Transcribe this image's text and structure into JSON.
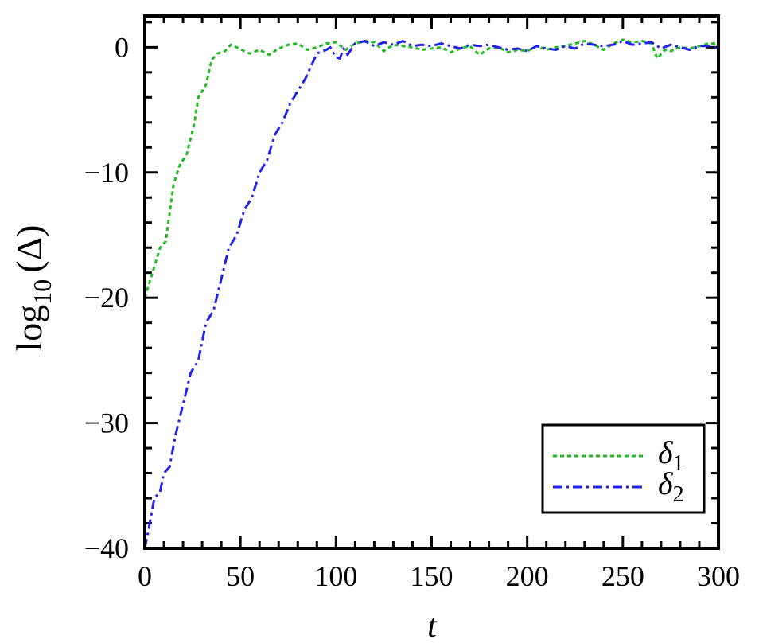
{
  "chart_data": {
    "type": "line",
    "xlabel": "t",
    "ylabel_main": "log",
    "ylabel_sub": "10",
    "ylabel_arg": "(Δ)",
    "xlim": [
      0,
      300
    ],
    "ylim": [
      -40,
      2.5
    ],
    "x_ticks": [
      0,
      50,
      100,
      150,
      200,
      250,
      300
    ],
    "y_ticks": [
      -40,
      -30,
      -20,
      -10,
      0
    ],
    "x_tick_labels": [
      "0",
      "50",
      "100",
      "150",
      "200",
      "250",
      "300"
    ],
    "y_tick_labels": [
      "−40",
      "−30",
      "−20",
      "−10",
      "0"
    ],
    "x_minor_step": 10,
    "y_minor_step": 2,
    "legend_position": "bottom-right",
    "series": [
      {
        "name": "δ",
        "name_sub": "1",
        "color": "#22bb22",
        "style": "dotted",
        "x": [
          0,
          5,
          8,
          11,
          15,
          18,
          22,
          26,
          28,
          32,
          35,
          38,
          42,
          45,
          48,
          52,
          55,
          60,
          65,
          70,
          75,
          80,
          85,
          90,
          95,
          100,
          105,
          110,
          115,
          120,
          125,
          130,
          135,
          140,
          145,
          150,
          155,
          160,
          165,
          170,
          175,
          180,
          185,
          190,
          195,
          200,
          205,
          210,
          215,
          220,
          225,
          230,
          235,
          240,
          245,
          250,
          255,
          260,
          265,
          268,
          272,
          275,
          280,
          285,
          290,
          295,
          300
        ],
        "y": [
          -20,
          -17.5,
          -16,
          -15.5,
          -11,
          -9.5,
          -8.5,
          -6,
          -4,
          -3,
          -1,
          -0.5,
          -0.3,
          0.2,
          0,
          -0.3,
          -0.5,
          -0.2,
          -0.6,
          -0.1,
          0.2,
          0.3,
          -0.2,
          0,
          0.3,
          0.4,
          -0.2,
          0.3,
          0.5,
          0.4,
          -0.3,
          0.2,
          0.1,
          0,
          -0.2,
          -0.1,
          0,
          -0.4,
          -0.1,
          0.1,
          -0.6,
          -0.1,
          0,
          -0.4,
          -0.2,
          -0.3,
          0.1,
          -0.2,
          0,
          0.1,
          0.3,
          0.5,
          0.2,
          -0.2,
          0.3,
          0.6,
          0.4,
          0.5,
          0.3,
          -0.9,
          -0.2,
          -0.3,
          0,
          -0.1,
          0.1,
          0.3,
          0.3
        ]
      },
      {
        "name": "δ",
        "name_sub": "2",
        "color": "#2222ee",
        "style": "dash-dot",
        "x": [
          0,
          2,
          5,
          8,
          10,
          13,
          16,
          20,
          24,
          28,
          32,
          36,
          40,
          44,
          48,
          52,
          56,
          60,
          64,
          68,
          72,
          76,
          80,
          84,
          87,
          90,
          93,
          95,
          97,
          100,
          102,
          104,
          106,
          110,
          115,
          120,
          125,
          130,
          135,
          140,
          145,
          150,
          155,
          160,
          165,
          170,
          175,
          180,
          185,
          190,
          195,
          200,
          205,
          210,
          215,
          220,
          225,
          230,
          235,
          240,
          245,
          250,
          255,
          260,
          265,
          270,
          275,
          280,
          285,
          290,
          295,
          300
        ],
        "y": [
          -40,
          -38.5,
          -36,
          -35.5,
          -34,
          -33.5,
          -31,
          -28.5,
          -26,
          -25,
          -22,
          -21,
          -18.5,
          -16,
          -15,
          -13,
          -12,
          -10,
          -9,
          -7,
          -6,
          -4.5,
          -3.5,
          -2.5,
          -1.5,
          -0.5,
          -0.3,
          -0.2,
          0,
          -0.8,
          -0.9,
          -0.1,
          -0.6,
          0.3,
          0.5,
          0.1,
          0.4,
          0.2,
          0.5,
          0.1,
          0.2,
          0.1,
          0.3,
          0.1,
          -0.1,
          0.2,
          0.1,
          0.2,
          0,
          -0.2,
          -0.1,
          -0.3,
          0.1,
          -0.1,
          -0.2,
          0.1,
          -0.1,
          0.3,
          0.2,
          0.1,
          0.2,
          0.5,
          0.2,
          0.3,
          0.4,
          -0.1,
          0.2,
          0,
          -0.2,
          0.1,
          0.1,
          -0.1
        ]
      }
    ]
  }
}
